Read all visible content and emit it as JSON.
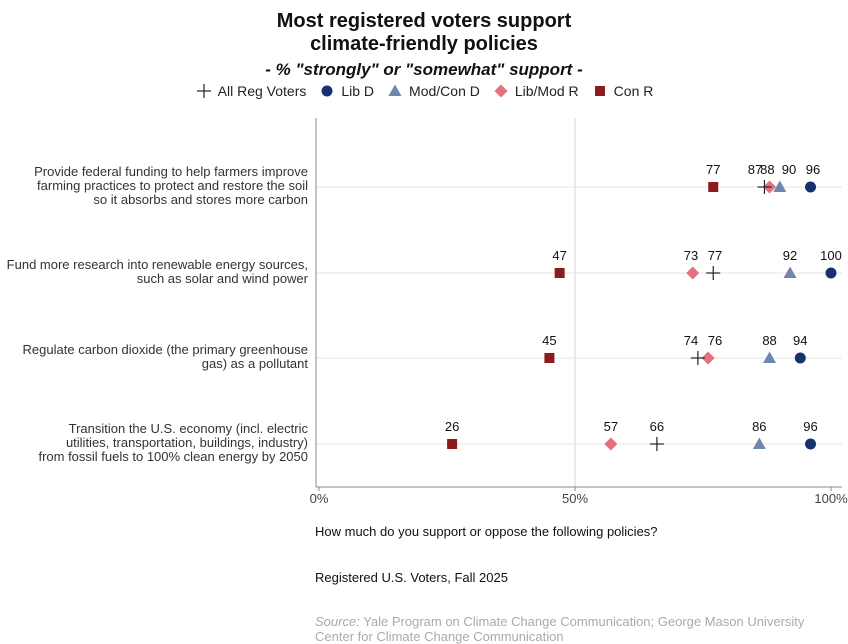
{
  "title_lines": [
    "Most registered voters support",
    "climate-friendly policies"
  ],
  "subtitle": "- % \"strongly\" or \"somewhat\" support -",
  "question": "How much do you support or oppose the following policies?",
  "population": "Registered U.S. Voters, Fall 2025",
  "source_label": "Source:",
  "source_text": " Yale Program on Climate Change Communication; George Mason University Center for Climate Change Communication",
  "chart_data": {
    "type": "scatter",
    "xlim": [
      0,
      100
    ],
    "x_ticks": [
      "0%",
      "50%",
      "100%"
    ],
    "legend_position": "top",
    "categories": [
      [
        "Provide federal funding to help farmers improve",
        "farming practices to protect and restore the soil",
        "so it absorbs and stores more carbon"
      ],
      [
        "Fund more research into renewable energy sources,",
        "such as solar and wind power"
      ],
      [
        "Regulate carbon dioxide (the primary greenhouse",
        "gas) as a pollutant"
      ],
      [
        "Transition the U.S. economy (incl. electric",
        "utilities, transportation, buildings, industry)",
        "from fossil fuels to 100% clean energy by 2050"
      ]
    ],
    "series": [
      {
        "name": "All Reg Voters",
        "marker": "cross",
        "color": "#222222",
        "values": [
          87,
          77,
          74,
          66
        ]
      },
      {
        "name": "Lib D",
        "marker": "circle",
        "color": "#17306e",
        "values": [
          96,
          100,
          94,
          96
        ]
      },
      {
        "name": "Mod/Con D",
        "marker": "triangle",
        "color": "#6f87b0",
        "values": [
          90,
          92,
          88,
          86
        ]
      },
      {
        "name": "Lib/Mod R",
        "marker": "diamond",
        "color": "#e5707e",
        "values": [
          88,
          73,
          76,
          57
        ]
      },
      {
        "name": "Con R",
        "marker": "square",
        "color": "#8b1c1c",
        "values": [
          77,
          47,
          45,
          26
        ]
      }
    ]
  }
}
